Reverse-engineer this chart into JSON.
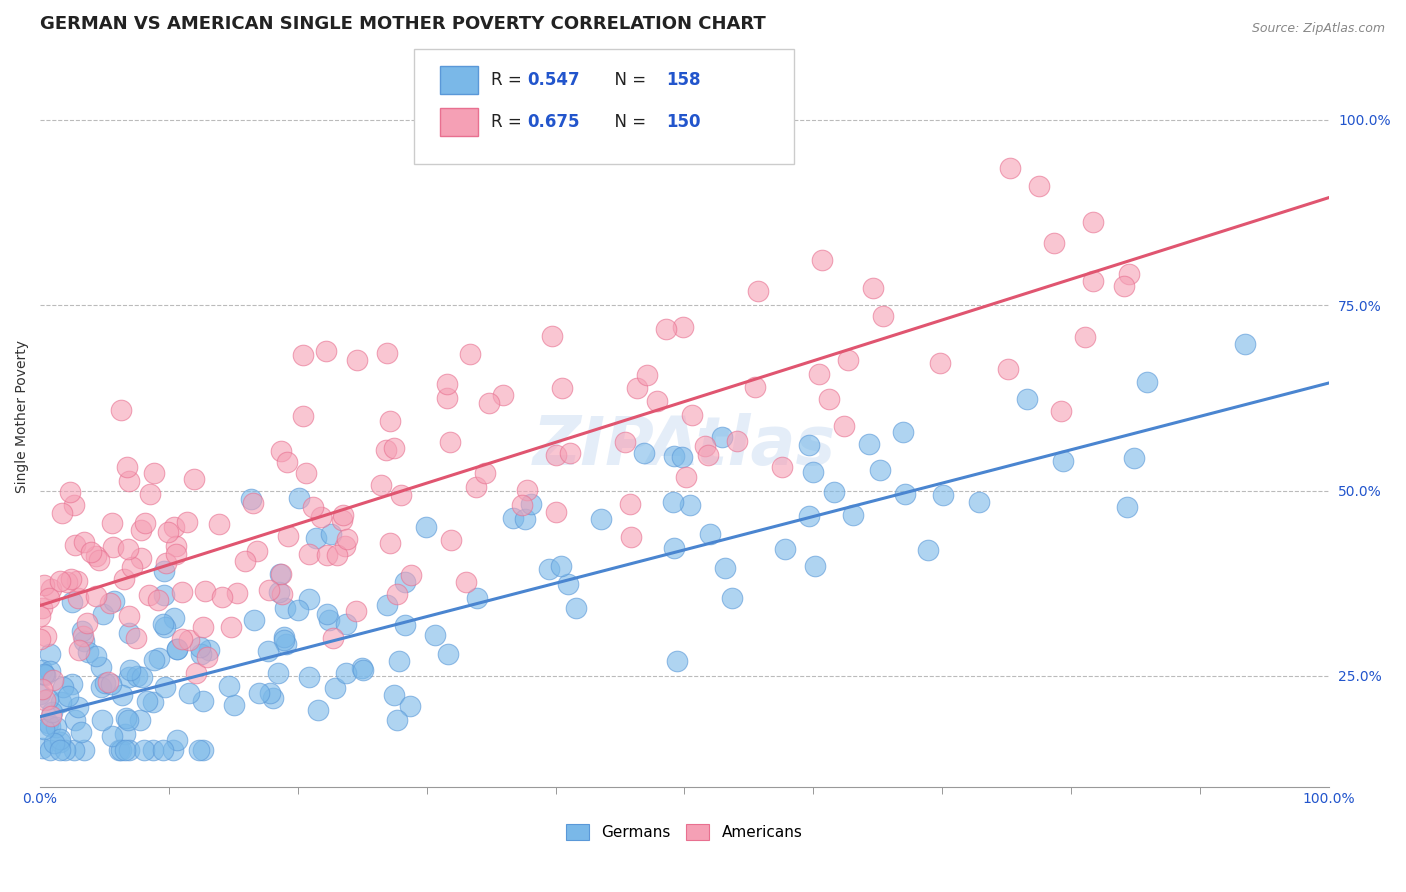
{
  "title": "GERMAN VS AMERICAN SINGLE MOTHER POVERTY CORRELATION CHART",
  "source": "Source: ZipAtlas.com",
  "ylabel": "Single Mother Poverty",
  "xlim": [
    0.0,
    1.0
  ],
  "ylim": [
    0.1,
    1.1
  ],
  "blue_color": "#7ab8e8",
  "pink_color": "#f5a0b5",
  "blue_edge_color": "#5a98d8",
  "pink_edge_color": "#e87090",
  "blue_line_color": "#4a85d0",
  "pink_line_color": "#e05570",
  "blue_R": 0.547,
  "blue_N": 158,
  "pink_R": 0.675,
  "pink_N": 150,
  "blue_slope": 0.45,
  "blue_intercept": 0.195,
  "pink_slope": 0.55,
  "pink_intercept": 0.345,
  "watermark": "ZIPAtlas",
  "title_fontsize": 13,
  "label_fontsize": 10,
  "tick_fontsize": 10,
  "background_color": "#ffffff",
  "grid_color": "#bbbbbb",
  "legend_value_color": "#2255cc",
  "seed": 99
}
